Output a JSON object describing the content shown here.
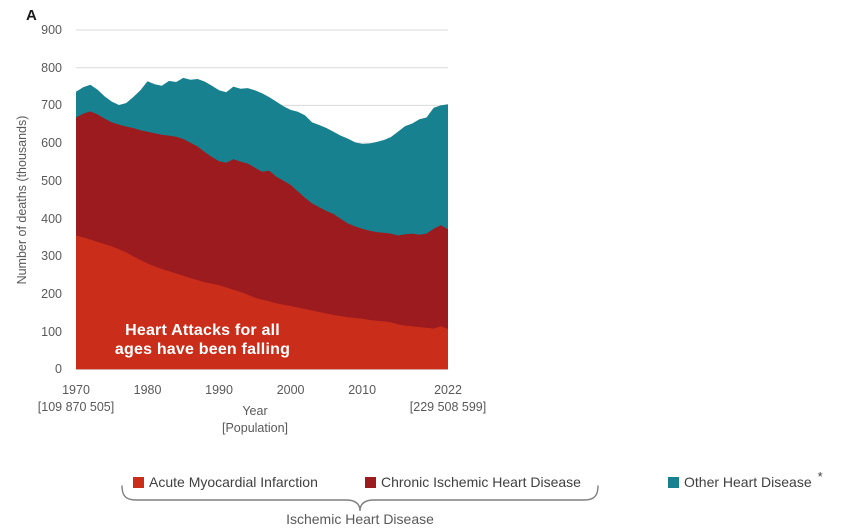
{
  "panel_label": "A",
  "annotation": {
    "line1": "Heart Attacks for all",
    "line2": "ages have been falling",
    "color": "#ffffff"
  },
  "legend": {
    "items": [
      {
        "label": "Acute Myocardial Infarction",
        "color": "#CA2E1B"
      },
      {
        "label": "Chronic Ischemic Heart Disease",
        "color": "#9C1B1E"
      },
      {
        "label": "Other Heart Disease",
        "color": "#17818F",
        "superscript": "*"
      }
    ],
    "group_label": "Ischemic Heart Disease"
  },
  "chart_data": {
    "type": "area",
    "stacked": true,
    "title": "",
    "ylabel": "Number of deaths (thousands)",
    "xlabel_line1": "Year",
    "xlabel_line2": "[Population]",
    "ylim": [
      0,
      900
    ],
    "grid": "horizontal",
    "grid_color": "#d9d9d9",
    "legend_position": "bottom",
    "y_ticks": [
      0,
      100,
      200,
      300,
      400,
      500,
      600,
      700,
      800,
      900
    ],
    "x_ticks": [
      {
        "year": 1970,
        "label": "1970",
        "sub": "[109 870 505]"
      },
      {
        "year": 1980,
        "label": "1980"
      },
      {
        "year": 1990,
        "label": "1990"
      },
      {
        "year": 2000,
        "label": "2000"
      },
      {
        "year": 2010,
        "label": "2010"
      },
      {
        "year": 2022,
        "label": "2022",
        "sub": "[229 508 599]"
      }
    ],
    "years": [
      1970,
      1971,
      1972,
      1973,
      1974,
      1975,
      1976,
      1977,
      1978,
      1979,
      1980,
      1981,
      1982,
      1983,
      1984,
      1985,
      1986,
      1987,
      1988,
      1989,
      1990,
      1991,
      1992,
      1993,
      1994,
      1995,
      1996,
      1997,
      1998,
      1999,
      2000,
      2001,
      2002,
      2003,
      2004,
      2005,
      2006,
      2007,
      2008,
      2009,
      2010,
      2011,
      2012,
      2013,
      2014,
      2015,
      2016,
      2017,
      2018,
      2019,
      2020,
      2021,
      2022
    ],
    "series": [
      {
        "name": "Acute Myocardial Infarction",
        "color": "#CA2E1B",
        "values": [
          355,
          350,
          344,
          338,
          332,
          326,
          318,
          310,
          300,
          290,
          281,
          273,
          266,
          260,
          254,
          248,
          242,
          236,
          231,
          227,
          223,
          217,
          211,
          205,
          198,
          190,
          185,
          180,
          175,
          171,
          168,
          164,
          160,
          156,
          152,
          148,
          144,
          141,
          138,
          136,
          134,
          131,
          129,
          127,
          125,
          119,
          116,
          114,
          112,
          110,
          108,
          114,
          107
        ]
      },
      {
        "name": "Chronic Ischemic Heart Disease",
        "color": "#9C1B1E",
        "values": [
          313,
          328,
          340,
          338,
          333,
          329,
          331,
          334,
          340,
          344,
          349,
          353,
          356,
          360,
          363,
          363,
          359,
          355,
          345,
          336,
          329,
          331,
          346,
          346,
          348,
          345,
          339,
          347,
          336,
          329,
          321,
          308,
          295,
          284,
          278,
          272,
          268,
          258,
          249,
          243,
          239,
          237,
          235,
          235,
          235,
          236,
          242,
          246,
          245,
          250,
          265,
          268,
          264
        ]
      },
      {
        "name": "Other Heart Disease",
        "color": "#17818F",
        "values": [
          68,
          70,
          71,
          66,
          59,
          55,
          52,
          62,
          82,
          106,
          134,
          130,
          130,
          145,
          145,
          162,
          167,
          179,
          187,
          189,
          188,
          187,
          193,
          193,
          200,
          205,
          208,
          195,
          199,
          198,
          199,
          211,
          219,
          215,
          218,
          220,
          218,
          221,
          225,
          223,
          225,
          231,
          239,
          246,
          256,
          275,
          287,
          292,
          306,
          308,
          321,
          318,
          332
        ]
      }
    ]
  }
}
